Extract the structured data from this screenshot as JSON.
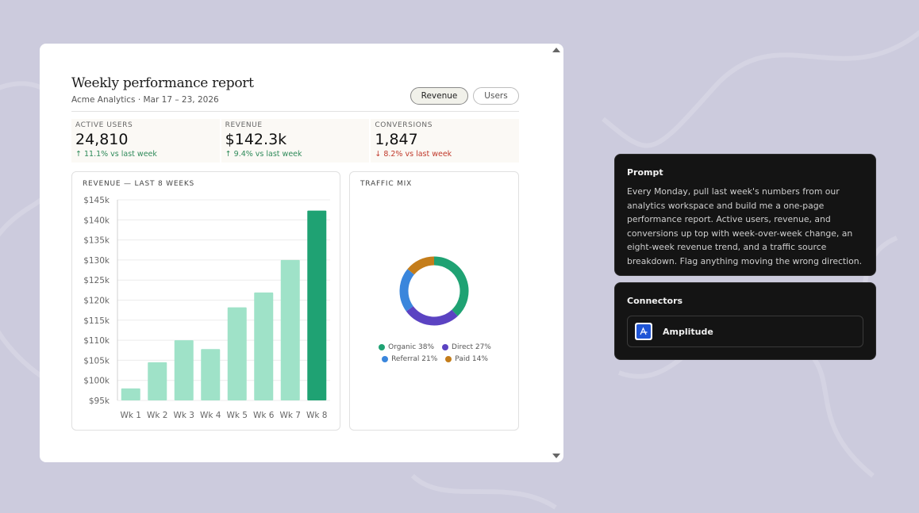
{
  "report": {
    "title": "Weekly performance report",
    "subtitle": "Acme Analytics · Mar 17 – 23, 2026",
    "toggles": [
      {
        "label": "Revenue",
        "active": true
      },
      {
        "label": "Users",
        "active": false
      }
    ],
    "kpis": [
      {
        "label": "ACTIVE USERS",
        "value": "24,810",
        "delta": "↑ 11.1% vs last week",
        "direction": "up"
      },
      {
        "label": "REVENUE",
        "value": "$142.3k",
        "delta": "↑ 9.4% vs last week",
        "direction": "up"
      },
      {
        "label": "CONVERSIONS",
        "value": "1,847",
        "delta": "↓ 8.2% vs last week",
        "direction": "down"
      }
    ],
    "revenue_panel_title": "REVENUE — LAST 8 WEEKS",
    "traffic_panel_title": "TRAFFIC MIX"
  },
  "chart_data": [
    {
      "type": "bar",
      "title": "REVENUE — LAST 8 WEEKS",
      "categories": [
        "Wk 1",
        "Wk 2",
        "Wk 3",
        "Wk 4",
        "Wk 5",
        "Wk 6",
        "Wk 7",
        "Wk 8"
      ],
      "values": [
        98,
        104.5,
        110,
        107.8,
        118.2,
        121.9,
        130,
        142.3
      ],
      "ylim": [
        95,
        145
      ],
      "yticks": [
        95,
        100,
        105,
        110,
        115,
        120,
        125,
        130,
        135,
        140,
        145
      ],
      "ytick_labels": [
        "$95k",
        "$100k",
        "$105k",
        "$110k",
        "$115k",
        "$120k",
        "$125k",
        "$130k",
        "$135k",
        "$140k",
        "$145k"
      ],
      "grid": true,
      "colors": {
        "default": "#9fe2c8",
        "highlight": "#1fa273"
      },
      "highlight_index": 7
    },
    {
      "type": "pie",
      "title": "TRAFFIC MIX",
      "donut": true,
      "slices": [
        {
          "label": "Organic",
          "value": 38,
          "color": "#1fa273"
        },
        {
          "label": "Direct",
          "value": 27,
          "color": "#5b43c2"
        },
        {
          "label": "Referral",
          "value": 21,
          "color": "#3a86dc"
        },
        {
          "label": "Paid",
          "value": 14,
          "color": "#c47d1b"
        }
      ],
      "legend_labels": [
        "Organic 38%",
        "Direct 27%",
        "Referral 21%",
        "Paid 14%"
      ],
      "legend_placement": "bottom"
    }
  ],
  "prompt": {
    "heading": "Prompt",
    "text": "Every Monday, pull last week's numbers from our analytics workspace and build me a one-page performance report. Active users, revenue, and conversions up top with week-over-week change, an eight-week revenue trend, and a traffic source breakdown. Flag anything moving the wrong direction."
  },
  "connectors": {
    "heading": "Connectors",
    "items": [
      {
        "name": "Amplitude",
        "icon": "amplitude-icon"
      }
    ]
  }
}
